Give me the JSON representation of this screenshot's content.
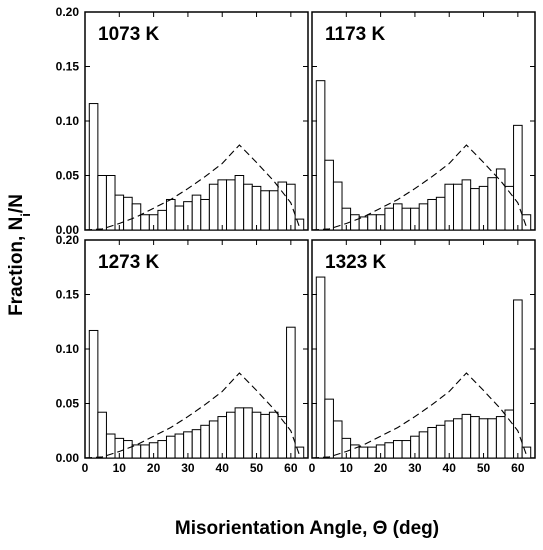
{
  "figure": {
    "ylabel_main": "Fraction, N",
    "ylabel_sub": "i",
    "ylabel_tail": "/N",
    "xlabel": "Misorientation Angle, Θ (deg)"
  },
  "chart_data": [
    {
      "type": "bar",
      "label": "1073 K",
      "x": [
        2.5,
        5,
        7.5,
        10,
        12.5,
        15,
        17.5,
        20,
        22.5,
        25,
        27.5,
        30,
        32.5,
        35,
        37.5,
        40,
        42.5,
        45,
        47.5,
        50,
        52.5,
        55,
        57.5,
        60,
        62.5
      ],
      "values": [
        0.116,
        0.05,
        0.05,
        0.032,
        0.03,
        0.024,
        0.014,
        0.014,
        0.018,
        0.028,
        0.022,
        0.026,
        0.032,
        0.028,
        0.042,
        0.046,
        0.046,
        0.05,
        0.042,
        0.04,
        0.036,
        0.036,
        0.044,
        0.042,
        0.01
      ],
      "reference_curve": {
        "x": [
          0,
          5,
          10,
          15,
          20,
          25,
          30,
          35,
          40,
          45,
          50,
          55,
          60,
          62.8
        ],
        "y": [
          0,
          0.001,
          0.006,
          0.012,
          0.02,
          0.028,
          0.038,
          0.049,
          0.061,
          0.078,
          0.062,
          0.045,
          0.025,
          0
        ]
      },
      "xlim": [
        0,
        65
      ],
      "ylim": [
        0,
        0.2
      ],
      "xticks": [
        "0",
        "10",
        "20",
        "30",
        "40",
        "50",
        "60"
      ],
      "yticks": [
        "0.00",
        "0.05",
        "0.10",
        "0.15",
        "0.20"
      ]
    },
    {
      "type": "bar",
      "label": "1173 K",
      "x": [
        2.5,
        5,
        7.5,
        10,
        12.5,
        15,
        17.5,
        20,
        22.5,
        25,
        27.5,
        30,
        32.5,
        35,
        37.5,
        40,
        42.5,
        45,
        47.5,
        50,
        52.5,
        55,
        57.5,
        60,
        62.5
      ],
      "values": [
        0.137,
        0.064,
        0.044,
        0.02,
        0.014,
        0.012,
        0.014,
        0.014,
        0.02,
        0.024,
        0.02,
        0.02,
        0.024,
        0.028,
        0.03,
        0.042,
        0.042,
        0.046,
        0.038,
        0.04,
        0.048,
        0.056,
        0.04,
        0.096,
        0.014
      ],
      "reference_curve": {
        "x": [
          0,
          5,
          10,
          15,
          20,
          25,
          30,
          35,
          40,
          45,
          50,
          55,
          60,
          62.8
        ],
        "y": [
          0,
          0.001,
          0.006,
          0.012,
          0.02,
          0.028,
          0.038,
          0.049,
          0.061,
          0.078,
          0.062,
          0.045,
          0.025,
          0
        ]
      },
      "xlim": [
        0,
        65
      ],
      "ylim": [
        0,
        0.2
      ],
      "xticks": [
        "0",
        "10",
        "20",
        "30",
        "40",
        "50",
        "60"
      ],
      "yticks": [
        "0.00",
        "0.05",
        "0.10",
        "0.15",
        "0.20"
      ]
    },
    {
      "type": "bar",
      "label": "1273 K",
      "x": [
        2.5,
        5,
        7.5,
        10,
        12.5,
        15,
        17.5,
        20,
        22.5,
        25,
        27.5,
        30,
        32.5,
        35,
        37.5,
        40,
        42.5,
        45,
        47.5,
        50,
        52.5,
        55,
        57.5,
        60,
        62.5
      ],
      "values": [
        0.117,
        0.042,
        0.022,
        0.018,
        0.016,
        0.012,
        0.012,
        0.014,
        0.016,
        0.02,
        0.022,
        0.024,
        0.026,
        0.03,
        0.034,
        0.038,
        0.042,
        0.046,
        0.046,
        0.042,
        0.04,
        0.042,
        0.038,
        0.12,
        0.01
      ],
      "reference_curve": {
        "x": [
          0,
          5,
          10,
          15,
          20,
          25,
          30,
          35,
          40,
          45,
          50,
          55,
          60,
          62.8
        ],
        "y": [
          0,
          0.001,
          0.006,
          0.012,
          0.02,
          0.028,
          0.038,
          0.049,
          0.061,
          0.078,
          0.062,
          0.045,
          0.025,
          0
        ]
      },
      "xlim": [
        0,
        65
      ],
      "ylim": [
        0,
        0.2
      ],
      "xticks": [
        "0",
        "10",
        "20",
        "30",
        "40",
        "50",
        "60"
      ],
      "yticks": [
        "0.00",
        "0.05",
        "0.10",
        "0.15",
        "0.20"
      ]
    },
    {
      "type": "bar",
      "label": "1323 K",
      "x": [
        2.5,
        5,
        7.5,
        10,
        12.5,
        15,
        17.5,
        20,
        22.5,
        25,
        27.5,
        30,
        32.5,
        35,
        37.5,
        40,
        42.5,
        45,
        47.5,
        50,
        52.5,
        55,
        57.5,
        60,
        62.5
      ],
      "values": [
        0.166,
        0.054,
        0.034,
        0.018,
        0.012,
        0.01,
        0.01,
        0.012,
        0.014,
        0.016,
        0.016,
        0.02,
        0.024,
        0.028,
        0.03,
        0.034,
        0.036,
        0.04,
        0.038,
        0.036,
        0.036,
        0.038,
        0.044,
        0.145,
        0.01
      ],
      "reference_curve": {
        "x": [
          0,
          5,
          10,
          15,
          20,
          25,
          30,
          35,
          40,
          45,
          50,
          55,
          60,
          62.8
        ],
        "y": [
          0,
          0.001,
          0.006,
          0.012,
          0.02,
          0.028,
          0.038,
          0.049,
          0.061,
          0.078,
          0.062,
          0.045,
          0.025,
          0
        ]
      },
      "xlim": [
        0,
        65
      ],
      "ylim": [
        0,
        0.2
      ],
      "xticks": [
        "0",
        "10",
        "20",
        "30",
        "40",
        "50",
        "60"
      ],
      "yticks": [
        "0.00",
        "0.05",
        "0.10",
        "0.15",
        "0.20"
      ]
    }
  ]
}
